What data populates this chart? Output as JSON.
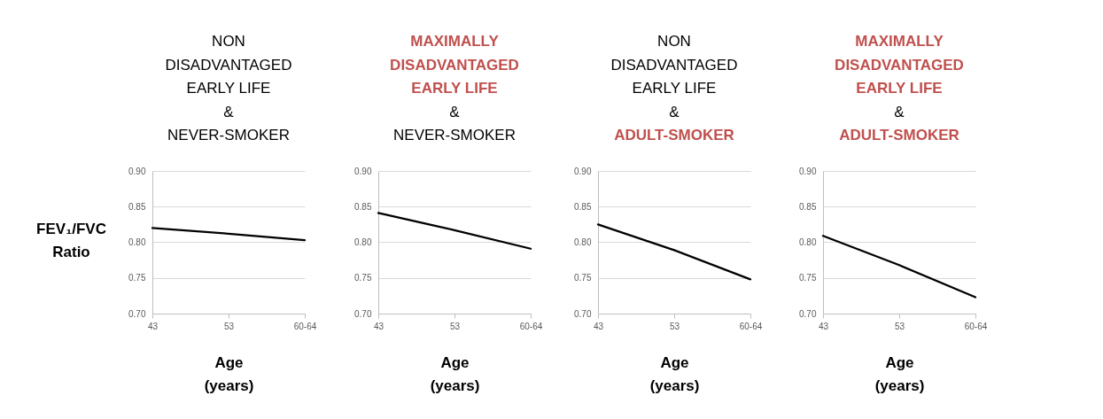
{
  "chart_data": [
    {
      "type": "line",
      "title": "NON\nDISADVANTAGED\nEARLY LIFE\n&\nNEVER-SMOKER",
      "xlabel": "Age\n(years)",
      "ylabel": "FEV₁/FVC\nRatio",
      "categories": [
        "43",
        "53",
        "60-64"
      ],
      "series": [
        {
          "color": "#000000",
          "values": [
            0.82,
            0.812,
            0.803
          ]
        }
      ],
      "ylim": [
        0.7,
        0.9
      ],
      "yticks": [
        {
          "value": 0.7,
          "label": "0.70"
        },
        {
          "value": 0.75,
          "label": "0.75"
        },
        {
          "value": 0.8,
          "label": "0.80"
        },
        {
          "value": 0.85,
          "label": "0.85"
        },
        {
          "value": 0.9,
          "label": "0.90"
        }
      ],
      "grid": "y"
    },
    {
      "type": "line",
      "title": "MAXIMALLY\nDISADVANTAGED\nEARLY LIFE\n&\nNEVER-SMOKER",
      "xlabel": "Age\n(years)",
      "categories": [
        "43",
        "53",
        "60-64"
      ],
      "series": [
        {
          "color": "#000000",
          "values": [
            0.841,
            0.817,
            0.791
          ]
        }
      ],
      "ylim": [
        0.7,
        0.9
      ],
      "yticks": [
        {
          "value": 0.7,
          "label": "0.70"
        },
        {
          "value": 0.75,
          "label": "0.75"
        },
        {
          "value": 0.8,
          "label": "0.80"
        },
        {
          "value": 0.85,
          "label": "0.85"
        },
        {
          "value": 0.9,
          "label": "0.90"
        }
      ],
      "grid": "y"
    },
    {
      "type": "line",
      "title": "NON\nDISADVANTAGED\nEARLY LIFE\n&\nADULT-SMOKER",
      "xlabel": "Age\n(years)",
      "categories": [
        "43",
        "53",
        "60-64"
      ],
      "series": [
        {
          "color": "#000000",
          "values": [
            0.825,
            0.789,
            0.748
          ]
        }
      ],
      "ylim": [
        0.7,
        0.9
      ],
      "yticks": [
        {
          "value": 0.7,
          "label": "0.70"
        },
        {
          "value": 0.75,
          "label": "0.75"
        },
        {
          "value": 0.8,
          "label": "0.80"
        },
        {
          "value": 0.85,
          "label": "0.85"
        },
        {
          "value": 0.9,
          "label": "0.90"
        }
      ],
      "grid": "y"
    },
    {
      "type": "line",
      "title": "MAXIMALLY\nDISADVANTAGED\nEARLY LIFE\n&\nADULT-SMOKER",
      "xlabel": "Age\n(years)",
      "categories": [
        "43",
        "53",
        "60-64"
      ],
      "series": [
        {
          "color": "#000000",
          "values": [
            0.809,
            0.768,
            0.723
          ]
        }
      ],
      "ylim": [
        0.7,
        0.9
      ],
      "yticks": [
        {
          "value": 0.7,
          "label": "0.70"
        },
        {
          "value": 0.75,
          "label": "0.75"
        },
        {
          "value": 0.8,
          "label": "0.80"
        },
        {
          "value": 0.85,
          "label": "0.85"
        },
        {
          "value": 0.9,
          "label": "0.90"
        }
      ],
      "grid": "y"
    }
  ]
}
